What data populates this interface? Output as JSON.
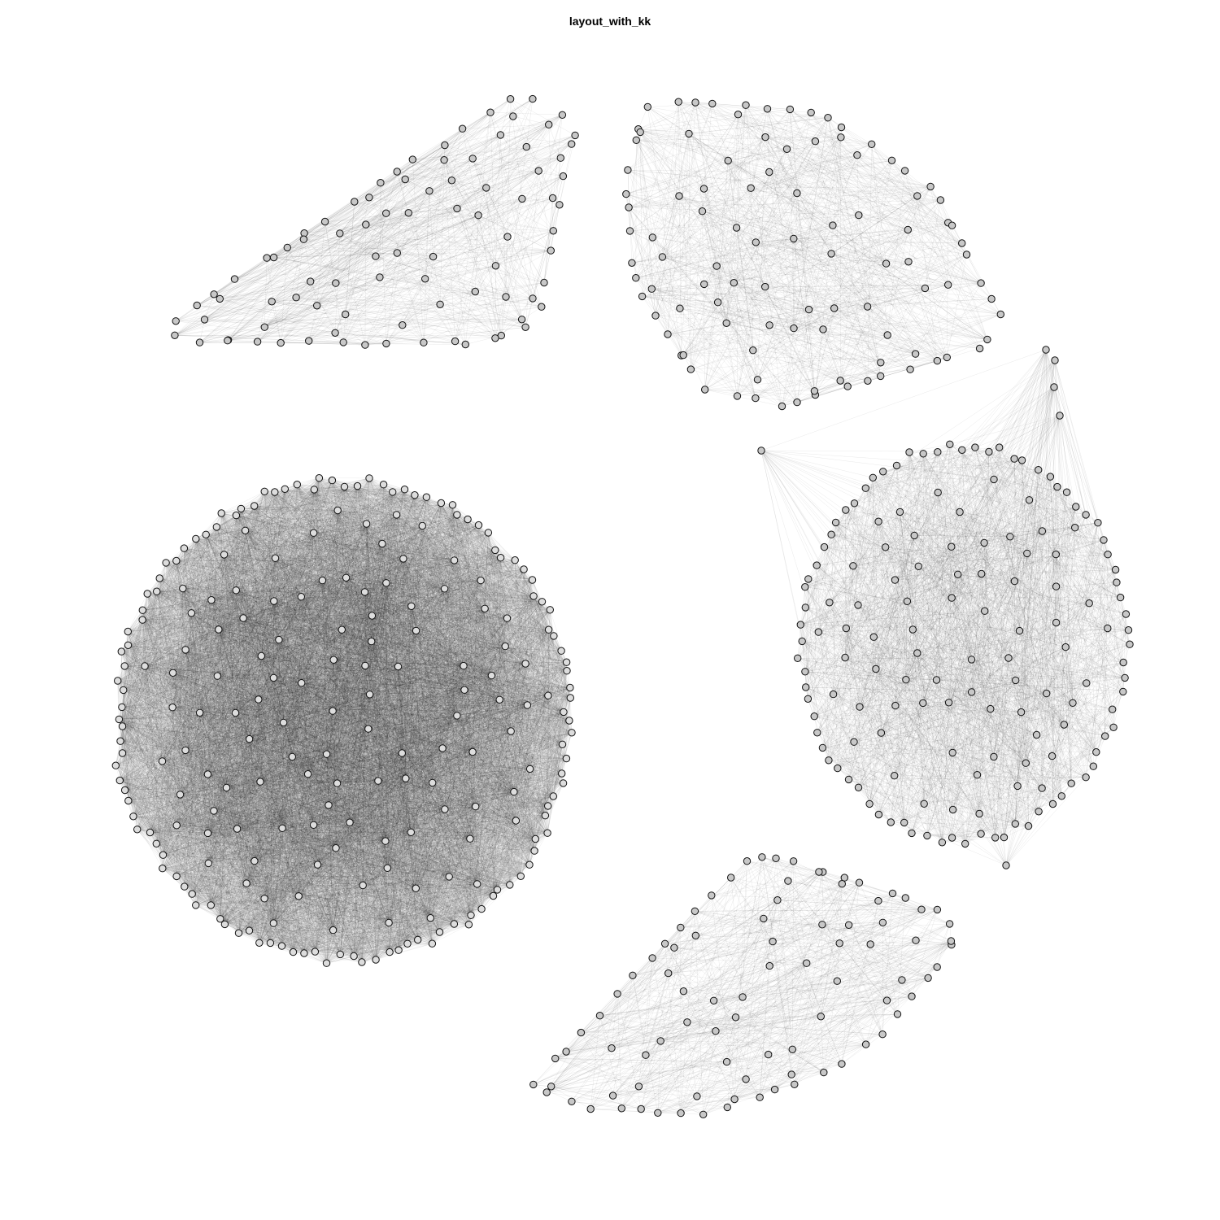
{
  "title": "layout_with_kk",
  "style": {
    "background": "#ffffff",
    "edge_color": "#000000",
    "node_fill": "#c8c8c8",
    "node_stroke": "#111111"
  },
  "graph": {
    "layout": "layout_with_kk",
    "components": 5,
    "component_regions": [
      "top-left",
      "top-right",
      "right",
      "left",
      "bottom"
    ]
  }
}
